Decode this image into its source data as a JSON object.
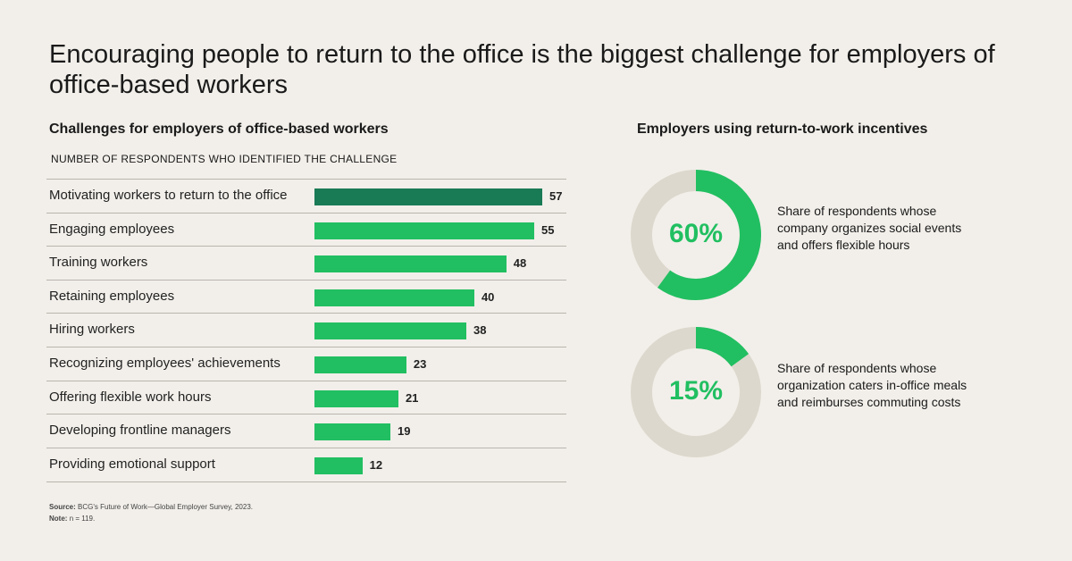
{
  "title": "Encouraging people to return to the office is the biggest challenge for employers of office-based workers",
  "left_title": "Challenges for employers of office-based workers",
  "left_subhead": "NUMBER OF RESPONDENTS WHO IDENTIFIED THE CHALLENGE",
  "right_title": "Employers using return-to-work incentives",
  "chart_data": [
    {
      "type": "bar",
      "orientation": "horizontal",
      "title": "Challenges for employers of office-based workers",
      "subtitle": "NUMBER OF RESPONDENTS WHO IDENTIFIED THE CHALLENGE",
      "categories": [
        "Motivating workers to return to the office",
        "Engaging employees",
        "Training workers",
        "Retaining employees",
        "Hiring workers",
        "Recognizing employees' achievements",
        "Offering flexible work hours",
        "Developing frontline managers",
        "Providing emotional support"
      ],
      "values": [
        57,
        55,
        48,
        40,
        38,
        23,
        21,
        19,
        12
      ],
      "xlim": [
        0,
        57
      ],
      "grid": false,
      "colors": {
        "default": "#21bf61",
        "highlight": "#197a56",
        "highlight_index": 0
      }
    },
    {
      "type": "pie",
      "title": "Employers using return-to-work incentives",
      "items": [
        {
          "value": 60,
          "label": "60%",
          "description": "Share of respondents whose company organizes social events and offers flexible hours"
        },
        {
          "value": 15,
          "label": "15%",
          "description": "Share of respondents whose organization caters in-office meals and reimburses commuting costs"
        }
      ],
      "colors": {
        "fill": "#21bf61",
        "track": "#ddd8cd"
      }
    }
  ],
  "footnote": {
    "source_label": "Source:",
    "source_text": "BCG's Future of Work—Global Employer Survey, 2023.",
    "note_label": "Note:",
    "note_text": "n = 119."
  }
}
